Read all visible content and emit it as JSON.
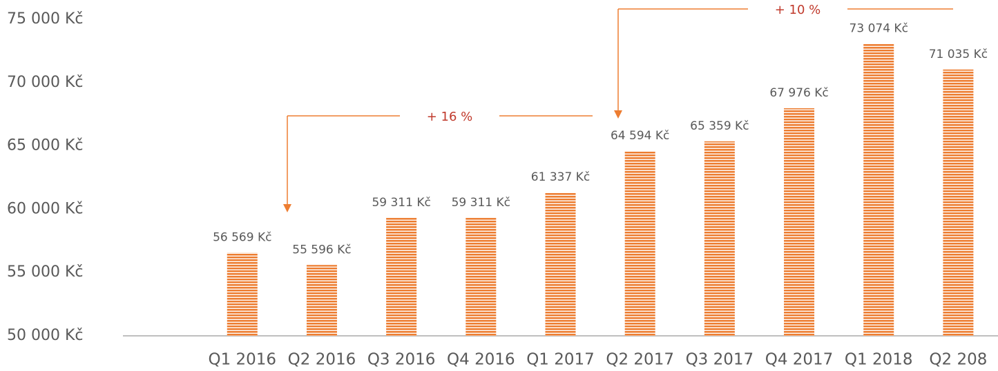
{
  "chart_data": {
    "type": "bar",
    "categories": [
      null,
      "Q1 2016",
      "Q2 2016",
      "Q3 2016",
      "Q4 2016",
      "Q1 2017",
      "Q2 2017",
      "Q3 2017",
      "Q4 2017",
      "Q1 2018",
      "Q2 208"
    ],
    "values": [
      null,
      56569,
      55596,
      59311,
      59311,
      61337,
      64594,
      65359,
      67976,
      73074,
      71035
    ],
    "value_labels": [
      null,
      "56 569 Kč",
      "55 596 Kč",
      "59 311 Kč",
      "59 311 Kč",
      "61 337 Kč",
      "64 594 Kč",
      "65 359 Kč",
      "67 976 Kč",
      "73 074 Kč",
      "71 035 Kč"
    ],
    "color": "#ed7d31",
    "ylim": [
      50000,
      75000
    ],
    "yticks": [
      {
        "value": 50000,
        "label": "50 000 Kč"
      },
      {
        "value": 55000,
        "label": "55 000 Kč"
      },
      {
        "value": 60000,
        "label": "60 000 Kč"
      },
      {
        "value": 65000,
        "label": "65 000 Kč"
      },
      {
        "value": 70000,
        "label": "70 000 Kč"
      },
      {
        "value": 75000,
        "label": "75 000 Kč"
      }
    ],
    "annotations": [
      "+ 16 %",
      "+ 10 %"
    ]
  }
}
